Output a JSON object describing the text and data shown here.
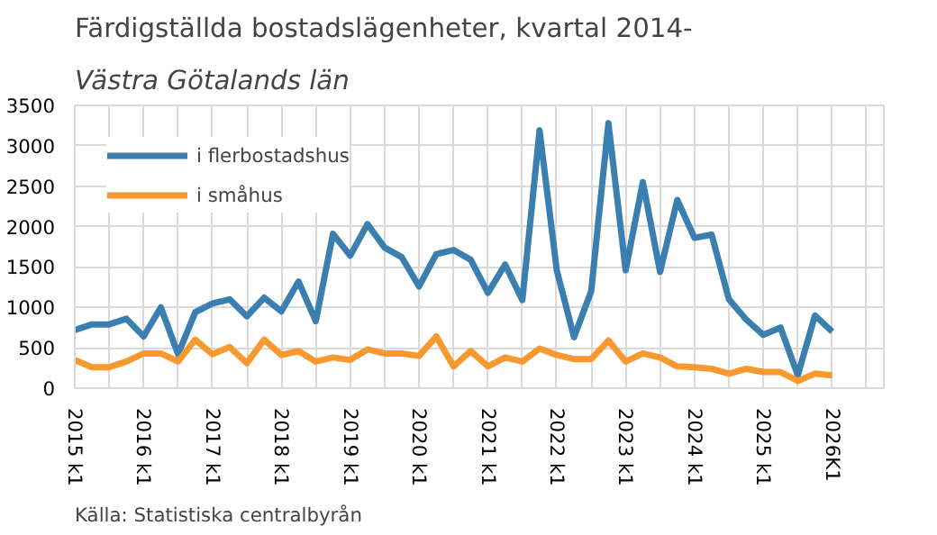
{
  "chart_data": {
    "type": "line",
    "title": "Färdigställda bostadslägenheter, kvartal 2014-",
    "subtitle": "Västra Götalands län",
    "categories": [
      "2015 k1",
      null,
      null,
      null,
      "2016 k1",
      null,
      null,
      null,
      "2017 k1",
      null,
      null,
      null,
      "2018 k1",
      null,
      null,
      null,
      "2019 k1",
      null,
      null,
      null,
      "2020 k1",
      null,
      null,
      null,
      "2021 k1",
      null,
      null,
      null,
      "2022 k1",
      null,
      null,
      null,
      "2023 k1",
      null,
      null,
      null,
      "2024 k1",
      null,
      null,
      null,
      "2025 k1",
      null,
      null,
      null,
      "2026K1",
      null,
      null,
      null
    ],
    "series": [
      {
        "name": "i flerbostadshus",
        "color": "#3a7fb0",
        "values": [
          720,
          790,
          790,
          860,
          640,
          1000,
          420,
          940,
          1050,
          1100,
          890,
          1120,
          950,
          1320,
          830,
          1910,
          1640,
          2030,
          1740,
          1620,
          1260,
          1660,
          1710,
          1590,
          1180,
          1530,
          1090,
          3190,
          1460,
          630,
          1200,
          3280,
          1460,
          2550,
          1440,
          2330,
          1860,
          1900,
          1100,
          850,
          660,
          750,
          160,
          900,
          700,
          null,
          null,
          null
        ]
      },
      {
        "name": "i småhus",
        "color": "#f7992e",
        "values": [
          350,
          260,
          260,
          330,
          430,
          430,
          330,
          600,
          420,
          510,
          310,
          600,
          410,
          460,
          330,
          380,
          350,
          480,
          430,
          430,
          400,
          640,
          270,
          460,
          270,
          380,
          330,
          490,
          410,
          360,
          360,
          590,
          330,
          430,
          380,
          270,
          260,
          240,
          180,
          240,
          200,
          200,
          90,
          180,
          160,
          null,
          null,
          null
        ]
      }
    ],
    "ylim": [
      0,
      3500
    ],
    "yticks": [
      0,
      500,
      1000,
      1500,
      2000,
      2500,
      3000,
      3500
    ],
    "grid": true,
    "legend": "top left",
    "line_style": "solid",
    "marker": "none",
    "annotations": [
      "Källa: Statistiska centralbyrån"
    ]
  }
}
